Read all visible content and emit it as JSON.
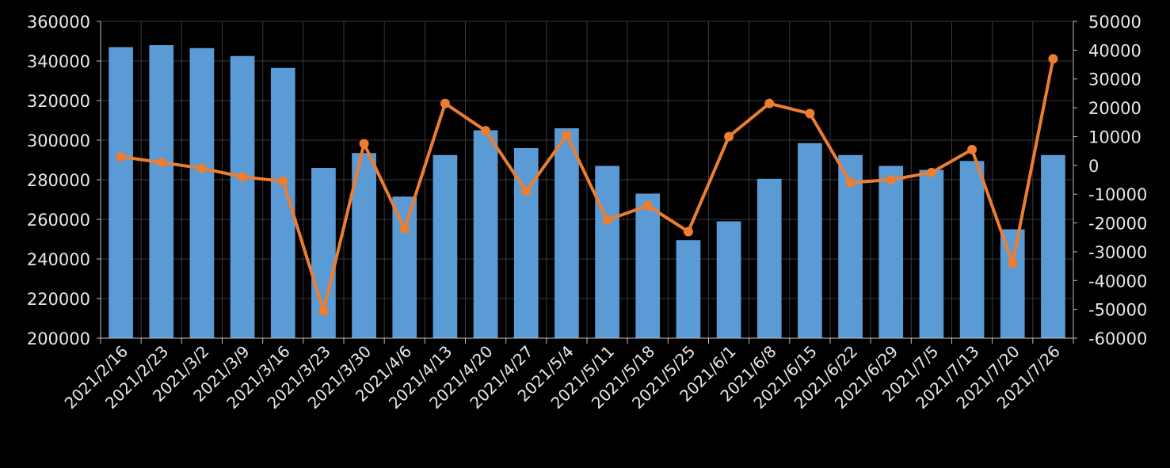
{
  "chart_data": {
    "type": "bar",
    "categories": [
      "2021/2/16",
      "2021/2/23",
      "2021/3/2",
      "2021/3/9",
      "2021/3/16",
      "2021/3/23",
      "2021/3/30",
      "2021/4/6",
      "2021/4/13",
      "2021/4/20",
      "2021/4/27",
      "2021/5/4",
      "2021/5/11",
      "2021/5/18",
      "2021/5/25",
      "2021/6/1",
      "2021/6/8",
      "2021/6/15",
      "2021/6/22",
      "2021/6/29",
      "2021/7/5",
      "2021/7/13",
      "2021/7/20",
      "2021/7/26"
    ],
    "series": [
      {
        "type": "bar",
        "axis": "left",
        "color": "#5b9bd5",
        "values": [
          347000,
          348000,
          346500,
          342500,
          336500,
          286000,
          293500,
          271500,
          292500,
          305000,
          296000,
          306000,
          287000,
          273000,
          249500,
          259000,
          280500,
          298500,
          292500,
          287000,
          285000,
          289500,
          255000,
          292500
        ]
      },
      {
        "type": "line",
        "axis": "right",
        "color": "#ed7d31",
        "values": [
          3000,
          1000,
          -1000,
          -4000,
          -5500,
          -50500,
          7500,
          -22000,
          21500,
          12000,
          -9000,
          10500,
          -19000,
          -14000,
          -23000,
          10000,
          21500,
          18000,
          -6000,
          -5000,
          -2500,
          5500,
          -34000,
          37000
        ]
      }
    ],
    "y_left": {
      "min": 200000,
      "max": 360000,
      "step": 20000
    },
    "y_right": {
      "min": -60000,
      "max": 50000,
      "step": 10000
    },
    "grid": true,
    "legend": "none",
    "title": "",
    "xlabel": "",
    "ylabel": ""
  }
}
